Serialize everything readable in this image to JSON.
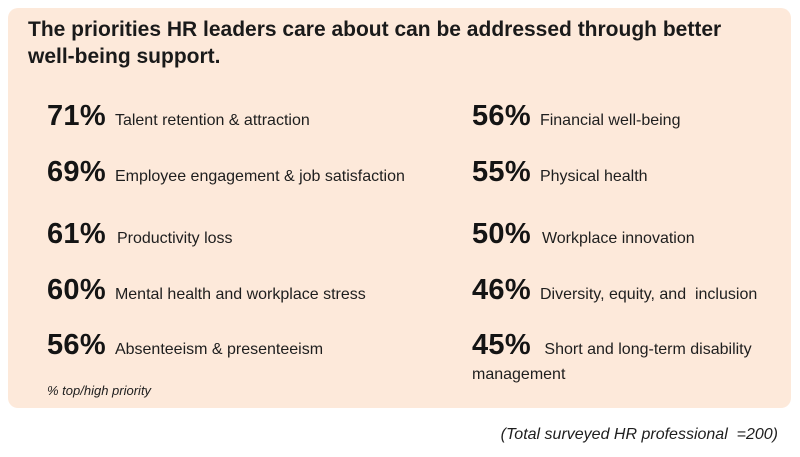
{
  "title": "The priorities HR leaders care about can be addressed through better well-being support.",
  "note": "% top/high priority",
  "footer": "(Total surveyed HR professional  =200)",
  "chart_data": {
    "type": "table",
    "title": "The priorities HR leaders care about can be addressed through better well-being support.",
    "unit": "% top/high priority",
    "columns": [
      [
        {
          "percent": 71,
          "label": "71%",
          "category": "Talent retention & attraction"
        },
        {
          "percent": 69,
          "label": "69%",
          "category": "Employee engagement & job satisfaction"
        },
        {
          "percent": 61,
          "label": "61%",
          "category": "Productivity loss"
        },
        {
          "percent": 60,
          "label": "60%",
          "category": "Mental health and workplace stress"
        },
        {
          "percent": 56,
          "label": "56%",
          "category": "Absenteeism & presenteeism"
        }
      ],
      [
        {
          "percent": 56,
          "label": "56%",
          "category": "Financial well-being"
        },
        {
          "percent": 55,
          "label": "55%",
          "category": "Physical health"
        },
        {
          "percent": 50,
          "label": "50%",
          "category": "Workplace innovation"
        },
        {
          "percent": 46,
          "label": "46%",
          "category": "Diversity, equity, and  inclusion"
        },
        {
          "percent": 45,
          "label": "45%",
          "category": "Short and long-term disability management"
        }
      ]
    ],
    "sample": "(Total surveyed HR professional  =200)"
  }
}
